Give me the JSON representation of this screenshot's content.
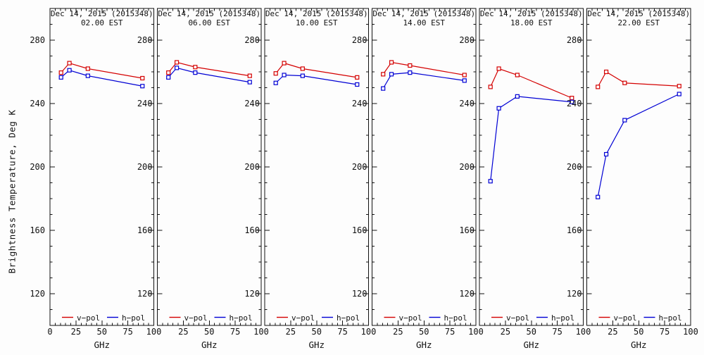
{
  "page": {
    "background": "#fdfdfd",
    "axis_color": "#111111"
  },
  "chart_data": {
    "type": "line",
    "title_date": "Dec 14, 2015 (2015348)",
    "ylabel": "Brightness Temperature, Deg K",
    "xlabel": "GHz",
    "xlim": [
      0,
      100
    ],
    "ylim": [
      100,
      300
    ],
    "xticks": [
      0,
      25,
      50,
      75,
      100
    ],
    "yticks": [
      120,
      160,
      200,
      240,
      280
    ],
    "x_minor_step": 5,
    "y_minor_step": 10,
    "x": [
      10.65,
      18.7,
      36.5,
      89
    ],
    "legend": [
      {
        "label": "v−pol",
        "color": "#d40000"
      },
      {
        "label": "h−pol",
        "color": "#0000d4"
      }
    ],
    "panels": [
      {
        "time": "02.00 EST",
        "series": [
          {
            "name": "v-pol",
            "color": "#d40000",
            "values": [
              259.5,
              265.5,
              262.0,
              256.0
            ]
          },
          {
            "name": "h-pol",
            "color": "#0000d4",
            "values": [
              256.5,
              261.0,
              257.5,
              251.0
            ]
          }
        ]
      },
      {
        "time": "06.00 EST",
        "series": [
          {
            "name": "v-pol",
            "color": "#d40000",
            "values": [
              259.5,
              266.0,
              263.0,
              257.5
            ]
          },
          {
            "name": "h-pol",
            "color": "#0000d4",
            "values": [
              256.5,
              262.5,
              259.5,
              253.5
            ]
          }
        ]
      },
      {
        "time": "10.00 EST",
        "series": [
          {
            "name": "v-pol",
            "color": "#d40000",
            "values": [
              259.0,
              265.5,
              262.0,
              256.5
            ]
          },
          {
            "name": "h-pol",
            "color": "#0000d4",
            "values": [
              253.0,
              258.0,
              257.5,
              252.0
            ]
          }
        ]
      },
      {
        "time": "14.00 EST",
        "series": [
          {
            "name": "v-pol",
            "color": "#d40000",
            "values": [
              258.5,
              266.0,
              264.0,
              258.0
            ]
          },
          {
            "name": "h-pol",
            "color": "#0000d4",
            "values": [
              249.5,
              258.5,
              259.5,
              254.5
            ]
          }
        ]
      },
      {
        "time": "18.00 EST",
        "series": [
          {
            "name": "v-pol",
            "color": "#d40000",
            "values": [
              250.5,
              262.0,
              258.0,
              243.5
            ]
          },
          {
            "name": "h-pol",
            "color": "#0000d4",
            "values": [
              191.0,
              237.0,
              244.5,
              241.0
            ]
          }
        ]
      },
      {
        "time": "22.00 EST",
        "series": [
          {
            "name": "v-pol",
            "color": "#d40000",
            "values": [
              250.5,
              260.0,
              253.0,
              251.0
            ]
          },
          {
            "name": "h-pol",
            "color": "#0000d4",
            "values": [
              181.0,
              208.0,
              229.5,
              246.0
            ]
          }
        ]
      }
    ]
  }
}
